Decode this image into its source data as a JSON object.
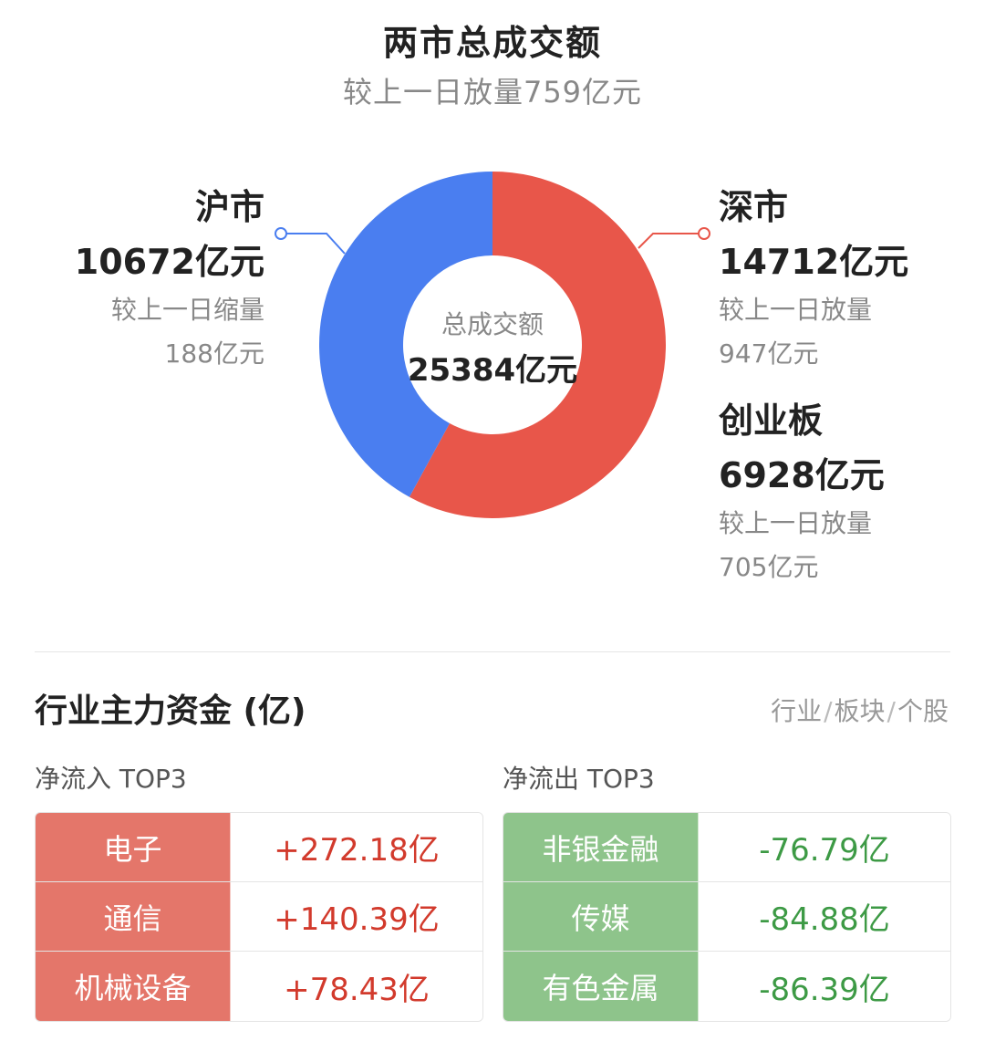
{
  "header": {
    "title": "两市总成交额",
    "subtitle": "较上一日放量759亿元"
  },
  "donut": {
    "center_label": "总成交额",
    "center_value": "25384亿元",
    "colors": {
      "shanghai": "#4a7ef0",
      "shenzhen": "#e8564a"
    }
  },
  "markets": {
    "shanghai": {
      "name": "沪市",
      "value": "10672亿元",
      "note": "较上一日缩量",
      "diff": "188亿元",
      "amount": 10672
    },
    "shenzhen": {
      "name": "深市",
      "value": "14712亿元",
      "note": "较上一日放量",
      "diff": "947亿元",
      "amount": 14712
    },
    "chinext": {
      "name": "创业板",
      "value": "6928亿元",
      "note": "较上一日放量",
      "diff": "705亿元"
    }
  },
  "fund_section": {
    "title": "行业主力资金 (亿)",
    "tabs": [
      "行业",
      "板块",
      "个股"
    ],
    "tab_separator": "/"
  },
  "inflow": {
    "title": "净流入 TOP3",
    "rows": [
      {
        "name": "电子",
        "value": "+272.18亿"
      },
      {
        "name": "通信",
        "value": "+140.39亿"
      },
      {
        "name": "机械设备",
        "value": "+78.43亿"
      }
    ]
  },
  "outflow": {
    "title": "净流出 TOP3",
    "rows": [
      {
        "name": "非银金融",
        "value": "-76.79亿"
      },
      {
        "name": "传媒",
        "value": "-84.88亿"
      },
      {
        "name": "有色金属",
        "value": "-86.39亿"
      }
    ]
  }
}
